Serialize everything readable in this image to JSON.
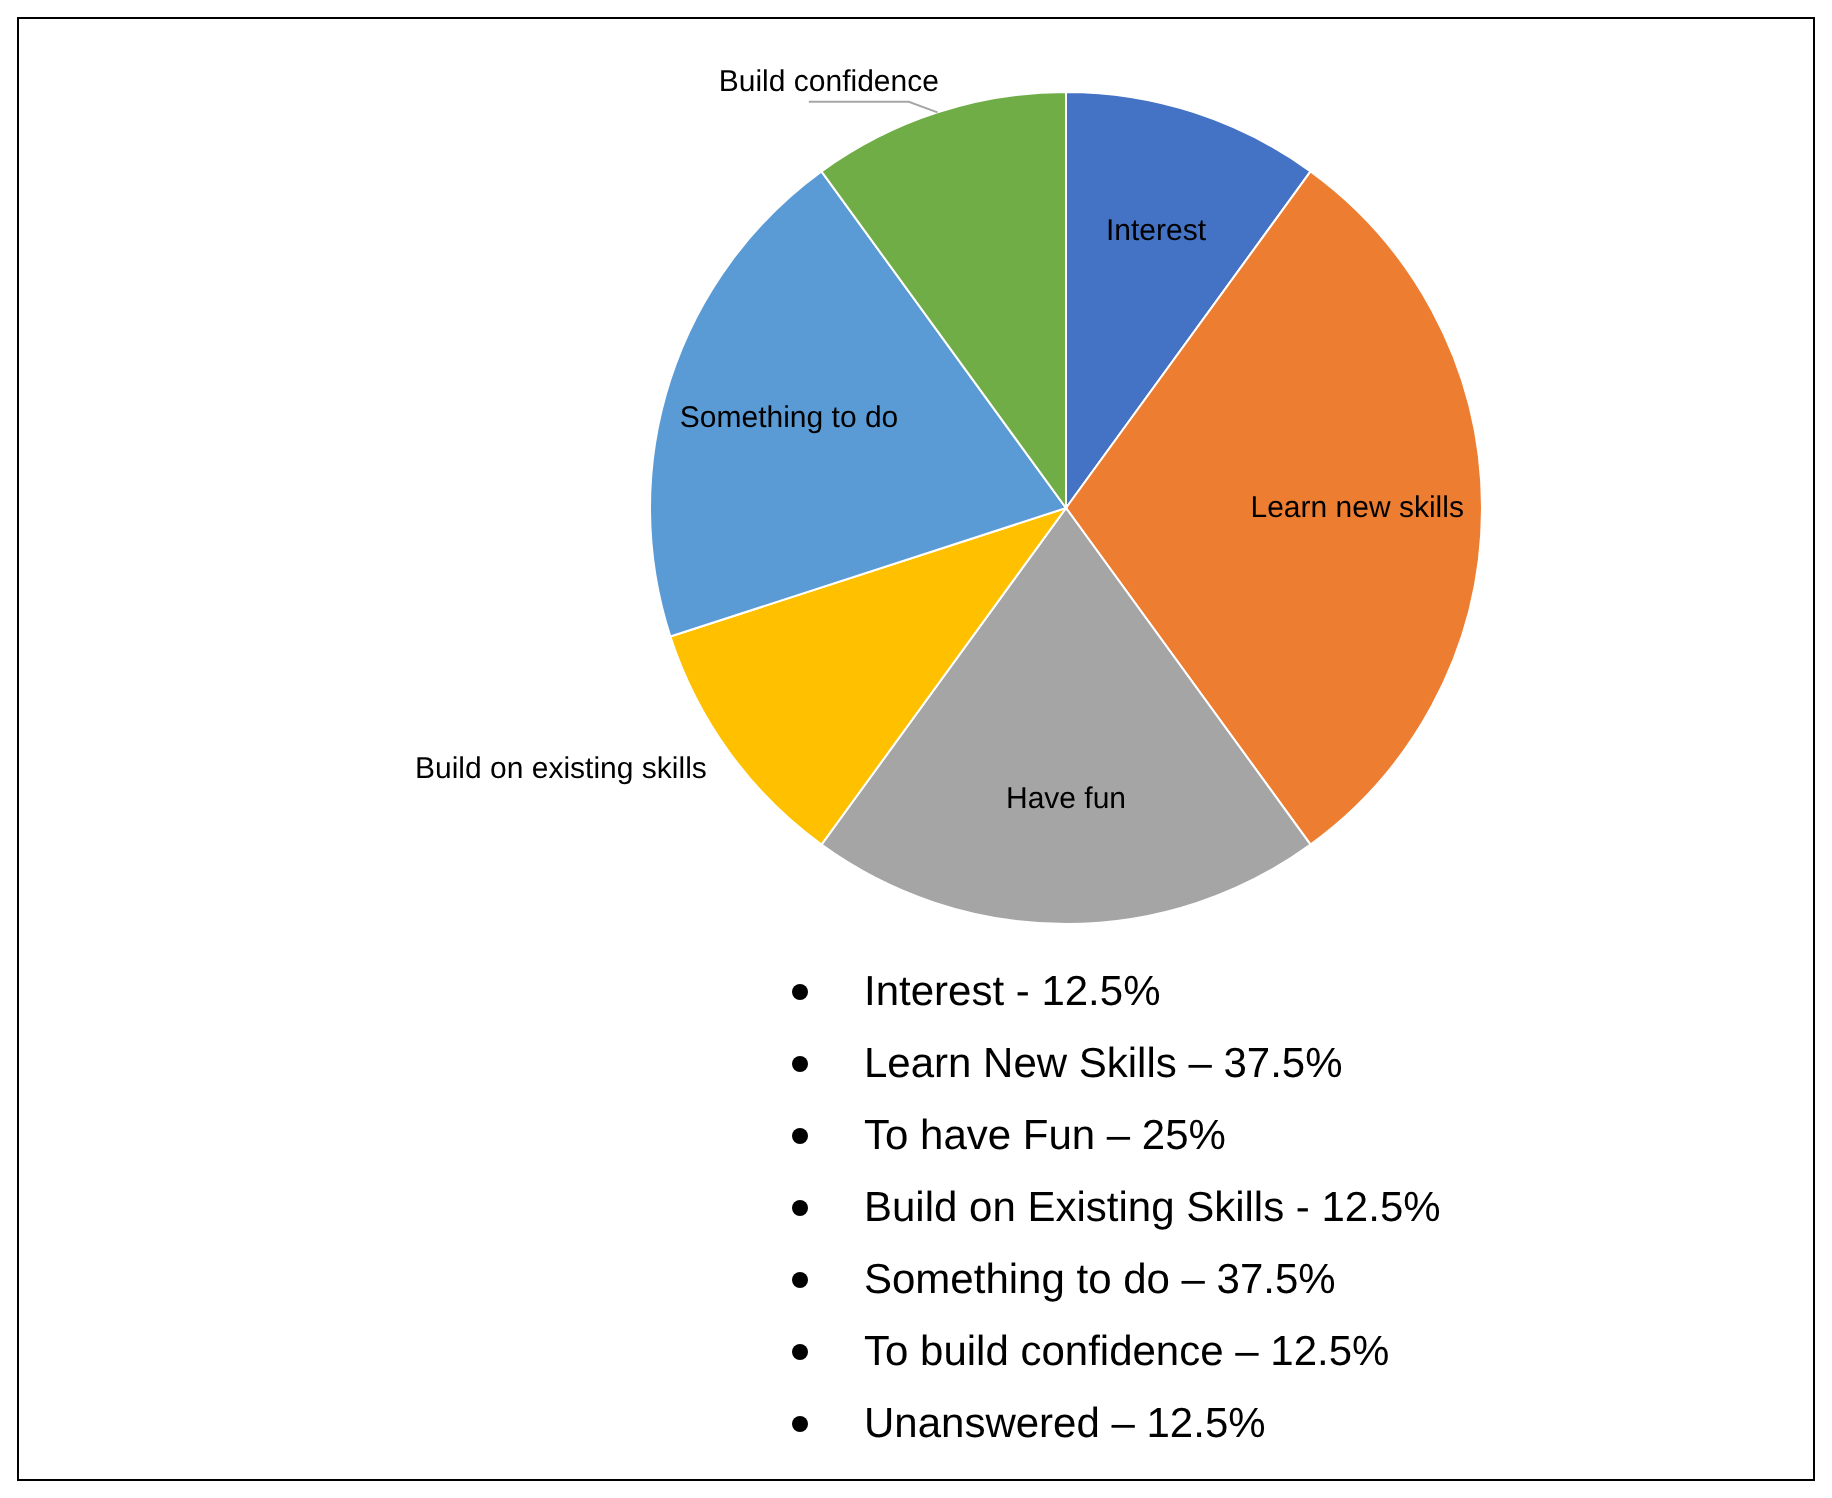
{
  "chart_data": {
    "type": "pie",
    "categories": [
      "Interest",
      "Learn new skills",
      "Have fun",
      "Build on existing skills",
      "Something to do",
      "Build confidence"
    ],
    "values": [
      10,
      30,
      20,
      10,
      20,
      10
    ],
    "colors": [
      "#4472c4",
      "#ed7d31",
      "#a5a5a5",
      "#ffc000",
      "#5b9bd5",
      "#70ad47"
    ],
    "annotations": [
      "Interest - 12.5%",
      "Learn New Skills – 37.5%",
      "To have Fun – 25%",
      "Build on Existing Skills - 12.5%",
      "Something to do – 37.5%",
      "To build confidence – 12.5%",
      "Unanswered – 12.5%"
    ]
  }
}
